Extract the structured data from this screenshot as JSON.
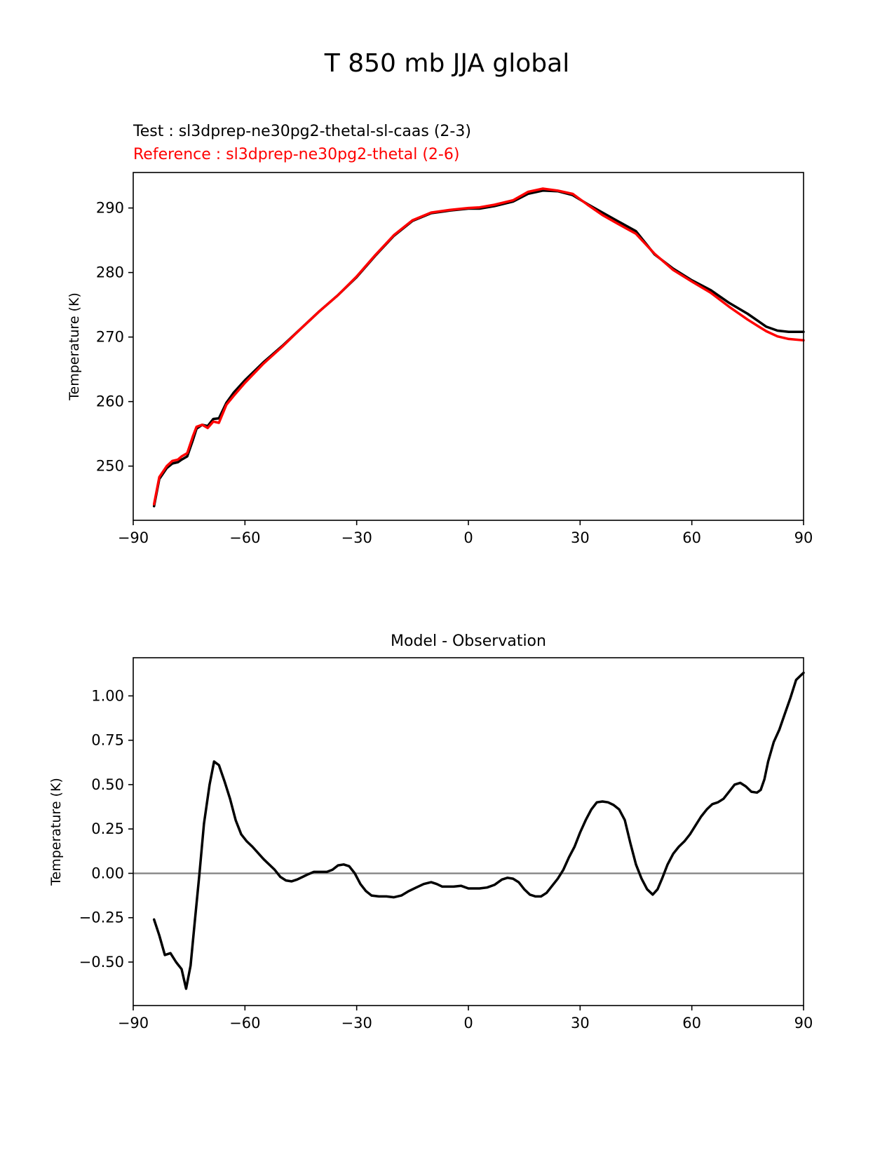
{
  "page_title": "T 850 mb JJA global",
  "chart_data": [
    {
      "type": "line",
      "title": "",
      "legend_lines": {
        "test": "Test : sl3dprep-ne30pg2-thetal-sl-caas (2-3)",
        "reference": "Reference : sl3dprep-ne30pg2-thetal (2-6)"
      },
      "legend_placement": "above-left",
      "xlabel": "",
      "ylabel": "Temperature (K)",
      "xlim": [
        -90,
        90
      ],
      "ylim": [
        241.6,
        295.5
      ],
      "xticks": [
        -90,
        -60,
        -30,
        0,
        30,
        60,
        90
      ],
      "xtick_labels": [
        "−90",
        "−60",
        "−30",
        "0",
        "30",
        "60",
        "90"
      ],
      "yticks": [
        250,
        260,
        270,
        280,
        290
      ],
      "ytick_labels": [
        "250",
        "260",
        "270",
        "280",
        "290"
      ],
      "grid": false,
      "series": [
        {
          "name": "Test",
          "color": "#000000",
          "x": [
            -84.4,
            -83,
            -81,
            -79.5,
            -78,
            -77,
            -75.5,
            -74,
            -73,
            -71.5,
            -70,
            -68.5,
            -67,
            -65,
            -63,
            -60,
            -55,
            -50,
            -45,
            -40,
            -35,
            -30,
            -25,
            -20,
            -15,
            -10,
            -5,
            0,
            3,
            7,
            12,
            16,
            20,
            24,
            28,
            32,
            36,
            40,
            45,
            50,
            55,
            60,
            65,
            70,
            75,
            78,
            80,
            83,
            86,
            90
          ],
          "y": [
            243.8,
            248.0,
            249.7,
            250.4,
            250.6,
            251.0,
            251.5,
            254.0,
            255.8,
            256.4,
            256.2,
            257.3,
            257.4,
            259.8,
            261.4,
            263.3,
            266.1,
            268.6,
            271.3,
            274.0,
            276.5,
            279.3,
            282.6,
            285.7,
            288.0,
            289.2,
            289.6,
            289.9,
            289.9,
            290.3,
            291.0,
            292.2,
            292.7,
            292.6,
            292.0,
            290.6,
            289.3,
            288.0,
            286.4,
            282.8,
            280.6,
            278.8,
            277.3,
            275.3,
            273.6,
            272.4,
            271.6,
            271.0,
            270.8,
            270.8
          ]
        },
        {
          "name": "Reference",
          "color": "#ff0000",
          "x": [
            -84.4,
            -83,
            -81,
            -79.5,
            -78,
            -77,
            -75.5,
            -74,
            -73,
            -71.5,
            -70,
            -68.5,
            -67,
            -65,
            -63,
            -60,
            -55,
            -50,
            -45,
            -40,
            -35,
            -30,
            -25,
            -20,
            -15,
            -10,
            -5,
            0,
            3,
            7,
            12,
            16,
            20,
            24,
            28,
            32,
            36,
            40,
            45,
            50,
            55,
            60,
            65,
            70,
            75,
            78,
            80,
            83,
            86,
            90
          ],
          "y": [
            244.1,
            248.3,
            250.0,
            250.8,
            251.0,
            251.5,
            252.0,
            254.6,
            256.1,
            256.4,
            255.9,
            256.9,
            256.7,
            259.5,
            260.9,
            262.9,
            265.9,
            268.5,
            271.3,
            274.0,
            276.5,
            279.4,
            282.7,
            285.8,
            288.1,
            289.3,
            289.7,
            290.0,
            290.1,
            290.5,
            291.2,
            292.5,
            293.0,
            292.7,
            292.2,
            290.5,
            288.9,
            287.6,
            286.0,
            282.9,
            280.4,
            278.6,
            276.9,
            274.7,
            272.7,
            271.6,
            270.9,
            270.1,
            269.7,
            269.5
          ]
        }
      ]
    },
    {
      "type": "line",
      "title": "Model - Observation",
      "xlabel": "",
      "ylabel": "Temperature (K)",
      "xlim": [
        -90,
        90
      ],
      "ylim": [
        -0.745,
        1.215
      ],
      "xticks": [
        -90,
        -60,
        -30,
        0,
        30,
        60,
        90
      ],
      "xtick_labels": [
        "−90",
        "−60",
        "−30",
        "0",
        "30",
        "60",
        "90"
      ],
      "yticks": [
        -0.5,
        -0.25,
        0.0,
        0.25,
        0.5,
        0.75,
        1.0
      ],
      "ytick_labels": [
        "−0.50",
        "−0.25",
        "0.00",
        "0.25",
        "0.50",
        "0.75",
        "1.00"
      ],
      "grid": false,
      "zero_line": {
        "y": 0,
        "color": "#808080"
      },
      "series": [
        {
          "color": "#000000",
          "x": [
            -84.4,
            -83,
            -81.5,
            -80,
            -78.5,
            -77,
            -75.8,
            -74.6,
            -73.5,
            -72.2,
            -71,
            -69.5,
            -68.3,
            -67,
            -65.5,
            -64,
            -62.5,
            -61,
            -59.5,
            -58,
            -55,
            -52,
            -50.5,
            -49,
            -47.5,
            -46,
            -44.5,
            -43,
            -41.5,
            -40,
            -38,
            -36.5,
            -35,
            -33.5,
            -32,
            -30.5,
            -29,
            -27.5,
            -26,
            -24,
            -22,
            -20,
            -18,
            -16,
            -14,
            -12,
            -10,
            -8.5,
            -7,
            -5.5,
            -4,
            -2,
            0,
            1.5,
            3,
            5,
            7,
            9,
            10.5,
            12,
            13.5,
            15,
            16.5,
            18,
            19.5,
            21,
            22.5,
            24,
            25.5,
            27,
            28.5,
            30,
            31.5,
            33,
            34.5,
            36,
            37.5,
            39,
            40.5,
            42,
            43.5,
            45,
            46.5,
            48,
            49.5,
            50.8,
            52,
            53.5,
            55,
            56.5,
            58,
            59.5,
            61,
            62.5,
            64,
            65.5,
            67,
            68.5,
            70,
            71.5,
            73,
            74.5,
            76,
            77.5,
            78.5,
            79.5,
            80.5,
            82,
            83.5,
            85,
            86.5,
            88,
            89.5,
            90
          ],
          "y": [
            -0.26,
            -0.35,
            -0.46,
            -0.45,
            -0.5,
            -0.54,
            -0.65,
            -0.52,
            -0.28,
            0.0,
            0.28,
            0.5,
            0.63,
            0.61,
            0.52,
            0.42,
            0.3,
            0.22,
            0.18,
            0.15,
            0.08,
            0.02,
            -0.02,
            -0.04,
            -0.045,
            -0.035,
            -0.02,
            -0.005,
            0.008,
            0.008,
            0.008,
            0.02,
            0.045,
            0.05,
            0.04,
            0.0,
            -0.06,
            -0.1,
            -0.125,
            -0.13,
            -0.13,
            -0.135,
            -0.125,
            -0.1,
            -0.08,
            -0.06,
            -0.05,
            -0.06,
            -0.075,
            -0.075,
            -0.075,
            -0.07,
            -0.085,
            -0.085,
            -0.085,
            -0.08,
            -0.065,
            -0.035,
            -0.025,
            -0.03,
            -0.05,
            -0.09,
            -0.12,
            -0.13,
            -0.13,
            -0.11,
            -0.07,
            -0.03,
            0.02,
            0.09,
            0.15,
            0.23,
            0.3,
            0.36,
            0.4,
            0.405,
            0.4,
            0.385,
            0.36,
            0.3,
            0.17,
            0.05,
            -0.03,
            -0.09,
            -0.12,
            -0.09,
            -0.03,
            0.05,
            0.11,
            0.15,
            0.18,
            0.22,
            0.27,
            0.32,
            0.36,
            0.39,
            0.4,
            0.42,
            0.46,
            0.5,
            0.51,
            0.49,
            0.46,
            0.455,
            0.47,
            0.53,
            0.63,
            0.74,
            0.81,
            0.9,
            0.99,
            1.09,
            1.12,
            1.13
          ]
        }
      ]
    }
  ]
}
